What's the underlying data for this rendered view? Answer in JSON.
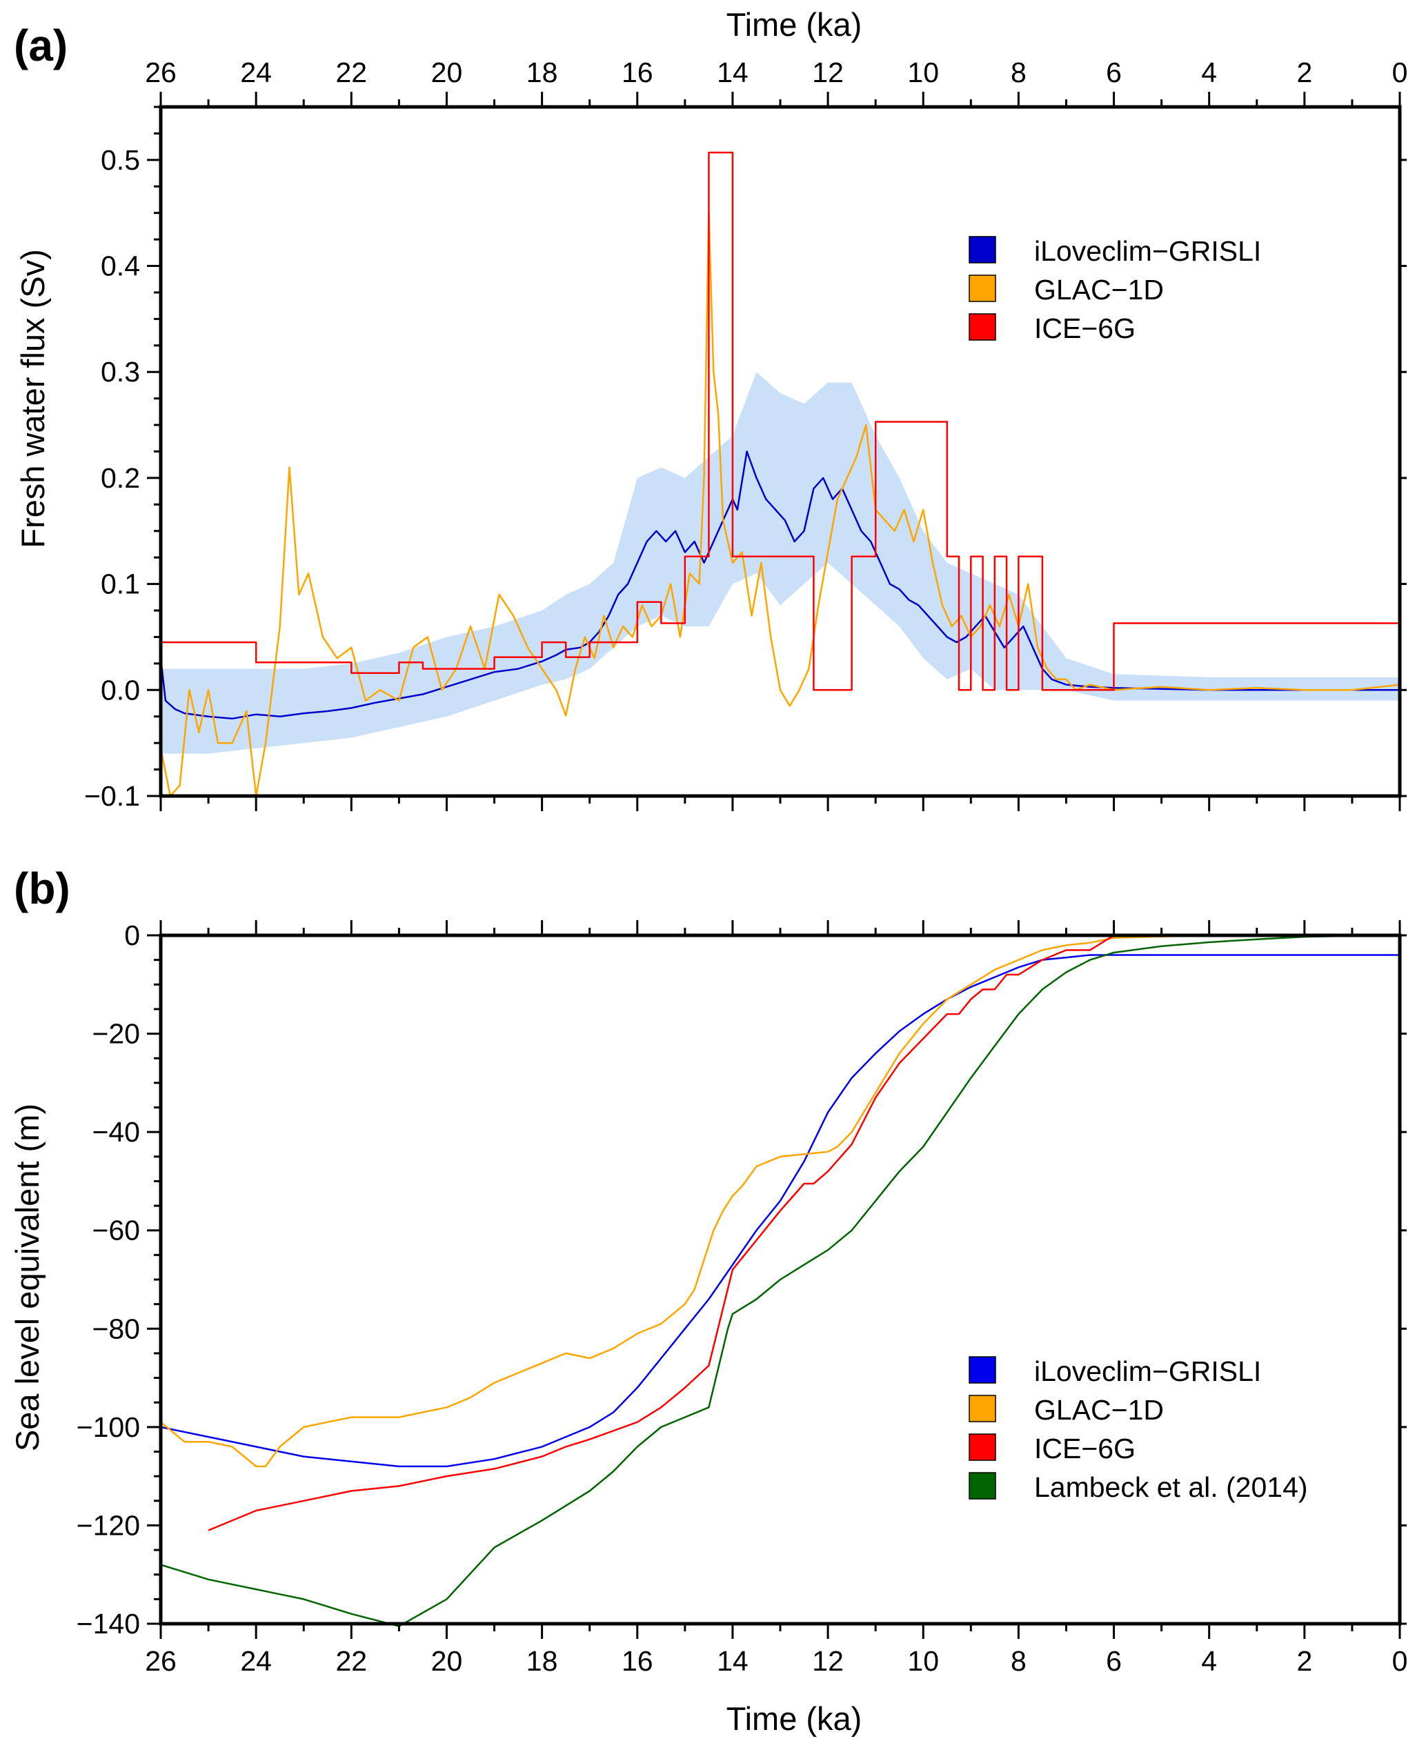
{
  "chart_data": [
    {
      "panel_label": "(a)",
      "type": "line",
      "xlabel": "Time (ka)",
      "ylabel": "Fresh water flux (Sv)",
      "xlim": [
        26,
        0
      ],
      "ylim": [
        -0.1,
        0.55
      ],
      "x_ticks": [
        "26",
        "24",
        "22",
        "20",
        "18",
        "16",
        "14",
        "12",
        "10",
        "8",
        "6",
        "4",
        "2",
        "0"
      ],
      "y_ticks": [
        "−0.1",
        "0.0",
        "0.1",
        "0.2",
        "0.3",
        "0.4",
        "0.5"
      ],
      "legend": [
        "iLoveclim−GRISLI",
        "GLAC−1D",
        "ICE−6G"
      ],
      "series": [
        {
          "name": "iLoveclim−GRISLI (spread)",
          "color": "#b8d4f5",
          "kind": "band",
          "x": [
            26,
            25,
            24,
            23,
            22,
            21,
            20,
            19,
            18,
            17.5,
            17,
            16.5,
            16,
            15.5,
            15,
            14.5,
            14,
            13.5,
            13,
            12.5,
            12,
            11.5,
            11,
            10.5,
            10,
            9.5,
            9,
            8.5,
            8,
            7.5,
            7,
            6,
            4,
            2,
            0
          ],
          "lower": [
            -0.06,
            -0.06,
            -0.055,
            -0.05,
            -0.045,
            -0.035,
            -0.025,
            -0.01,
            0.005,
            0.01,
            0.02,
            0.04,
            0.06,
            0.07,
            0.06,
            0.06,
            0.1,
            0.11,
            0.08,
            0.1,
            0.12,
            0.1,
            0.08,
            0.06,
            0.03,
            0.01,
            0.02,
            0.0,
            0.0,
            0.0,
            0.0,
            -0.01,
            -0.01,
            -0.01,
            -0.01
          ],
          "upper": [
            0.02,
            0.02,
            0.02,
            0.02,
            0.025,
            0.035,
            0.05,
            0.06,
            0.075,
            0.09,
            0.1,
            0.12,
            0.2,
            0.21,
            0.2,
            0.22,
            0.24,
            0.3,
            0.28,
            0.27,
            0.29,
            0.29,
            0.24,
            0.2,
            0.15,
            0.12,
            0.11,
            0.1,
            0.09,
            0.06,
            0.03,
            0.015,
            0.012,
            0.012,
            0.012
          ]
        },
        {
          "name": "iLoveclim−GRISLI",
          "color": "#0000cc",
          "x": [
            26,
            25.9,
            25.7,
            25.5,
            25,
            24.5,
            24,
            23.5,
            23,
            22.5,
            22,
            21.5,
            21,
            20.5,
            20,
            19.5,
            19,
            18.5,
            18,
            17.7,
            17.5,
            17.2,
            17,
            16.8,
            16.6,
            16.4,
            16.2,
            16.0,
            15.8,
            15.6,
            15.4,
            15.2,
            15.0,
            14.8,
            14.6,
            14.4,
            14.2,
            14.0,
            13.9,
            13.7,
            13.5,
            13.3,
            13.1,
            12.9,
            12.7,
            12.5,
            12.3,
            12.1,
            11.9,
            11.7,
            11.5,
            11.3,
            11.1,
            10.9,
            10.7,
            10.5,
            10.3,
            10.1,
            9.9,
            9.7,
            9.5,
            9.3,
            9.1,
            8.9,
            8.7,
            8.5,
            8.3,
            8.1,
            7.9,
            7.7,
            7.5,
            7.3,
            7.0,
            6.5,
            6.0,
            5.0,
            4.0,
            3.0,
            2.0,
            1.0,
            0.0
          ],
          "y": [
            0.03,
            -0.01,
            -0.018,
            -0.022,
            -0.025,
            -0.027,
            -0.023,
            -0.025,
            -0.022,
            -0.02,
            -0.017,
            -0.012,
            -0.008,
            -0.004,
            0.003,
            0.01,
            0.017,
            0.02,
            0.027,
            0.033,
            0.038,
            0.04,
            0.045,
            0.055,
            0.07,
            0.09,
            0.1,
            0.12,
            0.14,
            0.15,
            0.14,
            0.15,
            0.13,
            0.14,
            0.12,
            0.14,
            0.16,
            0.18,
            0.17,
            0.225,
            0.2,
            0.18,
            0.17,
            0.16,
            0.14,
            0.15,
            0.19,
            0.2,
            0.18,
            0.19,
            0.17,
            0.15,
            0.14,
            0.12,
            0.1,
            0.095,
            0.085,
            0.08,
            0.07,
            0.06,
            0.05,
            0.045,
            0.05,
            0.06,
            0.07,
            0.055,
            0.04,
            0.05,
            0.06,
            0.04,
            0.02,
            0.01,
            0.005,
            0.003,
            0.002,
            0.001,
            0.0,
            0.0,
            0.0,
            0.0,
            0.0
          ]
        },
        {
          "name": "GLAC−1D",
          "color": "#ffa500",
          "x": [
            26,
            25.8,
            25.6,
            25.4,
            25.2,
            25.0,
            24.8,
            24.5,
            24.2,
            24.0,
            23.8,
            23.5,
            23.3,
            23.1,
            22.9,
            22.6,
            22.3,
            22.0,
            21.7,
            21.4,
            21.0,
            20.7,
            20.4,
            20.1,
            19.8,
            19.5,
            19.2,
            18.9,
            18.6,
            18.3,
            18.0,
            17.7,
            17.5,
            17.3,
            17.1,
            16.9,
            16.7,
            16.5,
            16.3,
            16.1,
            15.9,
            15.7,
            15.5,
            15.3,
            15.1,
            14.9,
            14.7,
            14.6,
            14.5,
            14.4,
            14.3,
            14.2,
            14.0,
            13.8,
            13.6,
            13.4,
            13.2,
            13.0,
            12.8,
            12.6,
            12.4,
            12.2,
            12.0,
            11.8,
            11.6,
            11.4,
            11.2,
            11.0,
            10.8,
            10.6,
            10.4,
            10.2,
            10.0,
            9.8,
            9.6,
            9.4,
            9.2,
            9.0,
            8.8,
            8.6,
            8.4,
            8.2,
            8.0,
            7.8,
            7.6,
            7.4,
            7.2,
            7.0,
            6.8,
            6.5,
            6.0,
            5.0,
            4.0,
            3.0,
            2.0,
            1.0,
            0.0
          ],
          "y": [
            -0.055,
            -0.1,
            -0.09,
            0.0,
            -0.04,
            0.0,
            -0.05,
            -0.05,
            -0.02,
            -0.1,
            -0.05,
            0.06,
            0.21,
            0.09,
            0.11,
            0.05,
            0.03,
            0.04,
            -0.01,
            0.0,
            -0.01,
            0.04,
            0.05,
            0.0,
            0.02,
            0.06,
            0.02,
            0.09,
            0.07,
            0.04,
            0.02,
            0.0,
            -0.024,
            0.02,
            0.05,
            0.03,
            0.07,
            0.04,
            0.06,
            0.05,
            0.08,
            0.06,
            0.07,
            0.1,
            0.05,
            0.11,
            0.1,
            0.2,
            0.45,
            0.3,
            0.26,
            0.16,
            0.12,
            0.13,
            0.07,
            0.12,
            0.05,
            0.0,
            -0.015,
            0.0,
            0.02,
            0.08,
            0.13,
            0.18,
            0.2,
            0.22,
            0.25,
            0.17,
            0.16,
            0.15,
            0.17,
            0.14,
            0.17,
            0.12,
            0.08,
            0.06,
            0.07,
            0.05,
            0.06,
            0.08,
            0.06,
            0.09,
            0.06,
            0.1,
            0.04,
            0.02,
            0.01,
            0.01,
            0.0,
            0.005,
            0.0,
            0.003,
            0.0,
            0.002,
            0.0,
            0.0,
            0.005
          ]
        },
        {
          "name": "ICE−6G",
          "color": "#ff0000",
          "step": true,
          "x": [
            26,
            24,
            22,
            21,
            20.5,
            19,
            18,
            17.5,
            17,
            16,
            15.5,
            15,
            14.5,
            14.0,
            12.5,
            12.3,
            11.5,
            11.0,
            9.5,
            9.25,
            9.0,
            8.75,
            8.5,
            8.25,
            8.0,
            7.5,
            6.5,
            6.0,
            0
          ],
          "y": [
            0.045,
            0.026,
            0.016,
            0.026,
            0.02,
            0.031,
            0.045,
            0.031,
            0.045,
            0.083,
            0.063,
            0.126,
            0.507,
            0.126,
            0.126,
            0.0,
            0.126,
            0.253,
            0.126,
            0.0,
            0.126,
            0.0,
            0.126,
            0.0,
            0.126,
            0.0,
            0.0,
            0.063,
            0.0
          ]
        }
      ]
    },
    {
      "panel_label": "(b)",
      "type": "line",
      "xlabel": "Time (ka)",
      "ylabel": "Sea level equivalent (m)",
      "xlim": [
        26,
        0
      ],
      "ylim": [
        -140,
        0
      ],
      "x_ticks": [
        "26",
        "24",
        "22",
        "20",
        "18",
        "16",
        "14",
        "12",
        "10",
        "8",
        "6",
        "4",
        "2",
        "0"
      ],
      "y_ticks": [
        "−140",
        "−120",
        "−100",
        "−80",
        "−60",
        "−40",
        "−20",
        "0"
      ],
      "legend": [
        "iLoveclim−GRISLI",
        "GLAC−1D",
        "ICE−6G",
        "Lambeck et al. (2014)"
      ],
      "series": [
        {
          "name": "iLoveclim−GRISLI",
          "color": "#0000ee",
          "x": [
            26,
            25,
            24,
            23,
            22,
            21,
            20.5,
            20,
            19,
            18,
            17,
            16.5,
            16,
            15.5,
            15,
            14.5,
            14,
            13.5,
            13,
            12.5,
            12,
            11.5,
            11,
            10.5,
            10,
            9.5,
            9,
            8.5,
            8,
            7.5,
            7,
            6.5,
            6,
            4,
            2,
            0
          ],
          "y": [
            -100,
            -102,
            -104,
            -106,
            -107,
            -108,
            -108,
            -108,
            -106.5,
            -104,
            -100,
            -97,
            -92,
            -86,
            -80,
            -74,
            -67,
            -60,
            -54,
            -46,
            -36,
            -29,
            -24,
            -19.5,
            -16,
            -13,
            -10.5,
            -8.5,
            -6.5,
            -5,
            -4.5,
            -4,
            -4,
            -4,
            -4,
            -4
          ]
        },
        {
          "name": "GLAC−1D",
          "color": "#ffa500",
          "x": [
            26,
            25.5,
            25,
            24.5,
            24,
            23.8,
            23.5,
            23,
            22.5,
            22,
            21.5,
            21,
            20.5,
            20,
            19.5,
            19,
            18.5,
            18,
            17.5,
            17,
            16.5,
            16,
            15.5,
            15,
            14.8,
            14.6,
            14.4,
            14.2,
            14.0,
            13.8,
            13.5,
            13.0,
            12.5,
            12.0,
            11.8,
            11.5,
            11.0,
            10.5,
            10.0,
            9.5,
            9.0,
            8.5,
            8.0,
            7.5,
            7.0,
            6.5,
            6.0,
            4,
            2,
            0
          ],
          "y": [
            -99,
            -103,
            -103,
            -104,
            -108,
            -108,
            -104,
            -100,
            -99,
            -98,
            -98,
            -98,
            -97,
            -96,
            -94,
            -91,
            -89,
            -87,
            -85,
            -86,
            -84,
            -81,
            -79,
            -75,
            -72,
            -66,
            -60,
            -56,
            -53,
            -51,
            -47,
            -45,
            -44.5,
            -44,
            -43,
            -40,
            -32,
            -24,
            -18,
            -13,
            -10,
            -7,
            -5,
            -3,
            -2,
            -1.5,
            -0.5,
            0,
            0,
            0
          ]
        },
        {
          "name": "ICE−6G",
          "color": "#ff0000",
          "x": [
            25,
            24,
            23,
            22,
            21,
            20,
            19,
            18,
            17.5,
            17,
            16,
            15.5,
            15,
            14.5,
            14.0,
            13.5,
            13.0,
            12.5,
            12.3,
            12.0,
            11.5,
            11.0,
            10.5,
            10.0,
            9.5,
            9.25,
            9.0,
            8.75,
            8.5,
            8.25,
            8.0,
            7.5,
            7.0,
            6.5,
            6.0,
            4,
            2,
            0
          ],
          "y": [
            -121,
            -117,
            -115,
            -113,
            -112,
            -110,
            -108.5,
            -106,
            -104,
            -102.5,
            -99,
            -96,
            -92,
            -87.5,
            -68,
            -62,
            -56,
            -50.5,
            -50.5,
            -48,
            -42.5,
            -33,
            -26,
            -21,
            -16,
            -16,
            -13,
            -11,
            -11,
            -8,
            -8,
            -5,
            -3,
            -3,
            0,
            0,
            0,
            0
          ]
        },
        {
          "name": "Lambeck et al. (2014)",
          "color": "#006400",
          "x": [
            26,
            25,
            24,
            23,
            22,
            21,
            20,
            19,
            18,
            17,
            16.5,
            16,
            15.5,
            15,
            14.5,
            14.3,
            14.1,
            14.0,
            13.5,
            13,
            12.5,
            12,
            11.5,
            11,
            10.5,
            10,
            9.5,
            9,
            8.5,
            8,
            7.5,
            7,
            6.5,
            6,
            5,
            4,
            3,
            2,
            1,
            0
          ],
          "y": [
            -128,
            -131,
            -133,
            -135,
            -138,
            -140.5,
            -135,
            -124.5,
            -119,
            -113,
            -109,
            -104,
            -100,
            -98,
            -96,
            -88,
            -80,
            -77,
            -74,
            -70,
            -67,
            -64,
            -60,
            -54,
            -48,
            -43,
            -36,
            -29,
            -22.5,
            -16,
            -11,
            -7.5,
            -5,
            -3.5,
            -2.2,
            -1.4,
            -0.8,
            -0.3,
            -0.1,
            0
          ]
        }
      ]
    }
  ]
}
